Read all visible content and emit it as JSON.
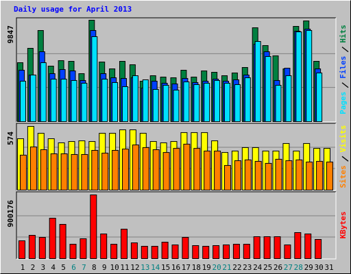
{
  "chart_data": [
    {
      "type": "bar",
      "title": "Daily usage for April 2013",
      "ylim": [
        0,
        9847
      ],
      "yticks": [
        9847
      ],
      "grid_divisions": 3,
      "series": [
        {
          "name": "Hits",
          "color": "#008040",
          "values": [
            5722,
            7119,
            8849,
            5389,
            5922,
            5855,
            4657,
            9847,
            5788,
            5123,
            5855,
            5522,
            3925,
            4458,
            4325,
            4258,
            4990,
            4325,
            4923,
            4790,
            4458,
            4724,
            5256,
            9115,
            7385,
            6387,
            5123,
            9248,
            9780,
            5855,
            0
          ]
        },
        {
          "name": "Files",
          "color": "#0040ff",
          "values": [
            4990,
            4524,
            6786,
            4657,
            5056,
            4923,
            3992,
            8849,
            4657,
            4258,
            4192,
            4258,
            3260,
            3925,
            3726,
            3659,
            4192,
            3792,
            3925,
            4125,
            3925,
            4059,
            4524,
            7518,
            6786,
            3992,
            5189,
            8782,
            8982,
            5123,
            0
          ]
        },
        {
          "name": "Pages",
          "color": "#00e0ff",
          "values": [
            3925,
            4524,
            5722,
            4125,
            4125,
            3992,
            3726,
            8250,
            4125,
            3792,
            3393,
            4458,
            4059,
            3127,
            3526,
            3060,
            3859,
            3593,
            3726,
            3992,
            3726,
            3593,
            4258,
            7784,
            6321,
            3526,
            4458,
            8716,
            8849,
            4724,
            0
          ]
        }
      ]
    },
    {
      "type": "bar",
      "ylim": [
        0,
        574
      ],
      "yticks": [
        574
      ],
      "grid_divisions": 3,
      "series": [
        {
          "name": "Visits",
          "color": "#ffff00",
          "values": [
            463,
            574,
            512,
            463,
            426,
            438,
            444,
            438,
            512,
            512,
            543,
            543,
            512,
            438,
            426,
            438,
            518,
            518,
            518,
            444,
            339,
            352,
            383,
            383,
            352,
            352,
            420,
            352,
            420,
            376,
            376
          ]
        },
        {
          "name": "Sites",
          "color": "#ff8000",
          "values": [
            315,
            389,
            364,
            327,
            327,
            321,
            321,
            358,
            333,
            358,
            370,
            407,
            383,
            364,
            339,
            376,
            414,
            376,
            352,
            352,
            222,
            265,
            272,
            259,
            241,
            278,
            265,
            272,
            253,
            259,
            253
          ]
        }
      ]
    },
    {
      "type": "bar",
      "ylim": [
        0,
        900176
      ],
      "yticks": [
        900176
      ],
      "grid_divisions": 3,
      "categories": [
        1,
        2,
        3,
        4,
        5,
        6,
        7,
        8,
        9,
        10,
        11,
        12,
        13,
        14,
        15,
        16,
        17,
        18,
        19,
        20,
        21,
        22,
        23,
        24,
        25,
        26,
        27,
        28,
        29,
        30,
        31
      ],
      "category_colors": [
        "#000000",
        "#000000",
        "#000000",
        "#000000",
        "#000000",
        "#008080",
        "#008080",
        "#000000",
        "#000000",
        "#000000",
        "#000000",
        "#000000",
        "#008080",
        "#008080",
        "#000000",
        "#000000",
        "#000000",
        "#000000",
        "#000000",
        "#008080",
        "#008080",
        "#000000",
        "#000000",
        "#000000",
        "#000000",
        "#000000",
        "#008080",
        "#008080",
        "#000000",
        "#000000",
        "#000000"
      ],
      "series": [
        {
          "name": "KBytes",
          "color": "#ff0000",
          "values": [
            251661,
            329096,
            300059,
            571079,
            483966,
            203265,
            280701,
            900176,
            348455,
            203265,
            416209,
            222623,
            174228,
            174228,
            232302,
            193586,
            300059,
            183907,
            174228,
            183907,
            193586,
            203265,
            203265,
            309738,
            309738,
            309738,
            193586,
            367813,
            348455,
            270982,
            0
          ]
        }
      ]
    }
  ]
}
